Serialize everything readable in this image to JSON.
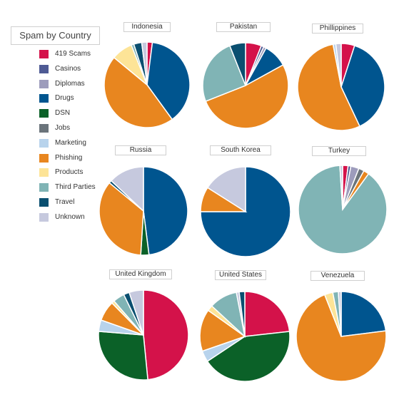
{
  "legend": {
    "title": "Spam by Country",
    "items": [
      {
        "name": "419 Scams",
        "color": "#d4124a"
      },
      {
        "name": "Casinos",
        "color": "#4e5a94"
      },
      {
        "name": "Diplomas",
        "color": "#9d9cbc"
      },
      {
        "name": "Drugs",
        "color": "#00558f"
      },
      {
        "name": "DSN",
        "color": "#0b6128"
      },
      {
        "name": "Jobs",
        "color": "#6b747b"
      },
      {
        "name": "Marketing",
        "color": "#b8d3ec"
      },
      {
        "name": "Phishing",
        "color": "#e8861f"
      },
      {
        "name": "Products",
        "color": "#fde497"
      },
      {
        "name": "Third Parties",
        "color": "#80b4b5"
      },
      {
        "name": "Travel",
        "color": "#0a4f70"
      },
      {
        "name": "Unknown",
        "color": "#c6c9de"
      }
    ]
  },
  "chart_data": [
    {
      "type": "pie",
      "title": "Indonesia",
      "labels": [
        "419 Scams",
        "Drugs",
        "Phishing",
        "Products",
        "Third Parties",
        "Travel",
        "Unknown"
      ],
      "values": [
        2,
        38,
        46,
        8,
        1,
        3,
        2
      ]
    },
    {
      "type": "pie",
      "title": "Pakistan",
      "labels": [
        "419 Scams",
        "Casinos",
        "Diplomas",
        "Drugs",
        "Phishing",
        "Third Parties",
        "Travel"
      ],
      "values": [
        6,
        1,
        1,
        9,
        52,
        25,
        6
      ]
    },
    {
      "type": "pie",
      "title": "Phillippines",
      "labels": [
        "419 Scams",
        "Drugs",
        "Phishing",
        "Marketing",
        "Unknown"
      ],
      "values": [
        5,
        38,
        54,
        1,
        2
      ]
    },
    {
      "type": "pie",
      "title": "Russia",
      "labels": [
        "Drugs",
        "DSN",
        "Phishing",
        "Travel",
        "Unknown"
      ],
      "values": [
        48,
        3,
        35,
        1,
        13
      ]
    },
    {
      "type": "pie",
      "title": "South Korea",
      "labels": [
        "Drugs",
        "Phishing",
        "Unknown"
      ],
      "values": [
        75,
        9,
        16
      ]
    },
    {
      "type": "pie",
      "title": "Turkey",
      "labels": [
        "419 Scams",
        "Casinos",
        "Diplomas",
        "Jobs",
        "Phishing",
        "Third Parties",
        "Unknown"
      ],
      "values": [
        2,
        1,
        3,
        2,
        2,
        89,
        1
      ]
    },
    {
      "type": "pie",
      "title": "United Kingdom",
      "labels": [
        "419 Scams",
        "DSN",
        "Marketing",
        "Phishing",
        "Products",
        "Third Parties",
        "Travel",
        "Unknown"
      ],
      "values": [
        47,
        27,
        4,
        7,
        1,
        4,
        2,
        5
      ]
    },
    {
      "type": "pie",
      "title": "United States",
      "labels": [
        "419 Scams",
        "DSN",
        "Marketing",
        "Phishing",
        "Products",
        "Third Parties",
        "Unknown",
        "Travel"
      ],
      "values": [
        23,
        42,
        4,
        15,
        2,
        10,
        1,
        2
      ]
    },
    {
      "type": "pie",
      "title": "Venezuela",
      "labels": [
        "Drugs",
        "Phishing",
        "Products",
        "Third Parties",
        "Unknown"
      ],
      "values": [
        23,
        71,
        3,
        2,
        1
      ]
    }
  ]
}
